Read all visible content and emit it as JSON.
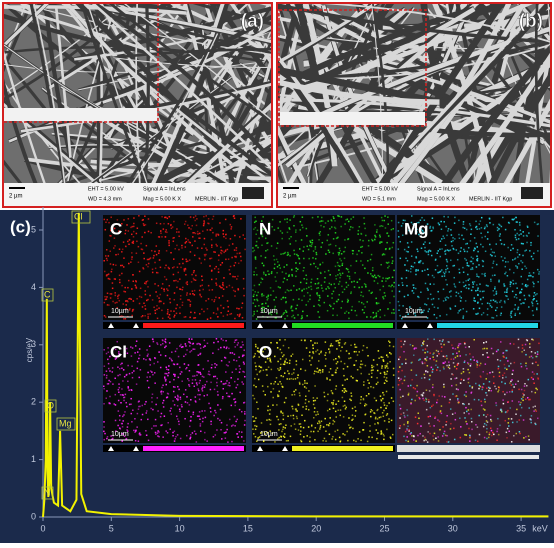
{
  "panel_a": {
    "label": "(a)",
    "scale": "2 µm",
    "info": [
      "EHT = 5.00 kV",
      "WD = 4.3 mm",
      "Signal A = InLens",
      "Mag = 5.00 K X",
      "MERLIN - IIT Kgp"
    ]
  },
  "panel_b": {
    "label": "(b)",
    "scale": "2 µm",
    "info": [
      "EHT = 5.00 kV",
      "WD = 5.1 mm",
      "Signal A = InLens",
      "Mag = 5.00 K X",
      "MERLIN - IIT Kgp"
    ]
  },
  "chart_data": {
    "type": "line",
    "label": "(c)",
    "y_label": "cps/eV",
    "x_unit": "keV",
    "color": "#f2f200",
    "x": [
      0,
      0.1,
      0.2,
      0.28,
      0.33,
      0.39,
      0.45,
      0.52,
      0.6,
      0.8,
      1.1,
      1.25,
      1.4,
      2,
      2.45,
      2.62,
      2.8,
      3.2,
      5,
      10,
      20,
      30,
      37
    ],
    "values": [
      0,
      0.3,
      1.0,
      3.8,
      0.8,
      0.35,
      0.6,
      2.0,
      0.5,
      0.25,
      0.2,
      1.5,
      0.2,
      0.1,
      0.3,
      5.3,
      0.4,
      0.1,
      0.05,
      0.02,
      0.01,
      0.01,
      0.01
    ],
    "xlim": [
      0,
      37
    ],
    "ylim": [
      0,
      5.4
    ],
    "xticks": [
      0,
      5,
      10,
      15,
      20,
      25,
      30,
      35
    ],
    "yticks": [
      0,
      1,
      2,
      3,
      4,
      5
    ],
    "annotations": [
      {
        "text": "C",
        "x": 0.28
      },
      {
        "text": "N",
        "x": 0.39
      },
      {
        "text": "O",
        "x": 0.52
      },
      {
        "text": "Mg",
        "x": 1.25
      },
      {
        "text": "Cl",
        "x": 2.62
      }
    ]
  },
  "maps": [
    {
      "label": "C",
      "color": "#ff1a1a",
      "scale": "10µm"
    },
    {
      "label": "N",
      "color": "#22dd22",
      "scale": "10µm"
    },
    {
      "label": "Mg",
      "color": "#22d6e6",
      "scale": "10µm"
    },
    {
      "label": "Cl",
      "color": "#ff22ff",
      "scale": "10µm"
    },
    {
      "label": "O",
      "color": "#f0f020",
      "scale": "10µm"
    }
  ]
}
